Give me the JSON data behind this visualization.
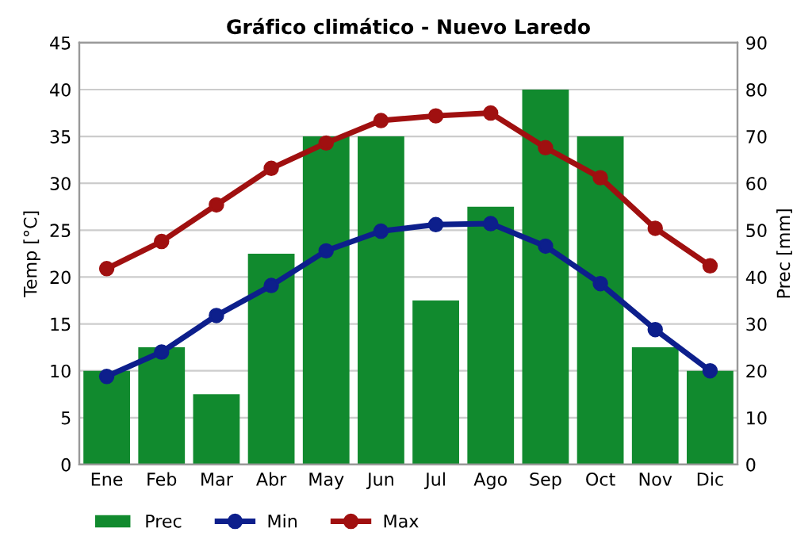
{
  "chart_data": {
    "type": "bar",
    "title": "Gráfico climático - Nuevo Laredo",
    "ylabel": "Temp [°C]",
    "y2label": "Prec [mm]",
    "categories": [
      "Ene",
      "Feb",
      "Mar",
      "Abr",
      "May",
      "Jun",
      "Jul",
      "Ago",
      "Sep",
      "Oct",
      "Nov",
      "Dic"
    ],
    "series": [
      {
        "name": "Prec",
        "axis": "y2",
        "color": "#118a2e",
        "values": [
          20,
          25,
          15,
          45,
          70,
          70,
          35,
          55,
          80,
          70,
          25,
          20
        ]
      },
      {
        "name": "Min",
        "type": "line",
        "color": "#0d1f8c",
        "values": [
          9.4,
          12.0,
          15.9,
          19.1,
          22.8,
          24.9,
          25.6,
          25.7,
          23.3,
          19.3,
          14.4,
          10.0
        ]
      },
      {
        "name": "Max",
        "type": "line",
        "color": "#a01010",
        "values": [
          20.9,
          23.8,
          27.7,
          31.6,
          34.3,
          36.7,
          37.2,
          37.5,
          33.8,
          30.6,
          25.2,
          21.2
        ]
      }
    ],
    "ylim": [
      0,
      45
    ],
    "yticks": [
      0,
      5,
      10,
      15,
      20,
      25,
      30,
      35,
      40,
      45
    ],
    "y2lim": [
      0,
      90
    ],
    "y2ticks": [
      0,
      10,
      20,
      30,
      40,
      50,
      60,
      70,
      80,
      90
    ],
    "grid": "y",
    "legend": "bottom",
    "marker": "circle",
    "line_style": "solid"
  }
}
